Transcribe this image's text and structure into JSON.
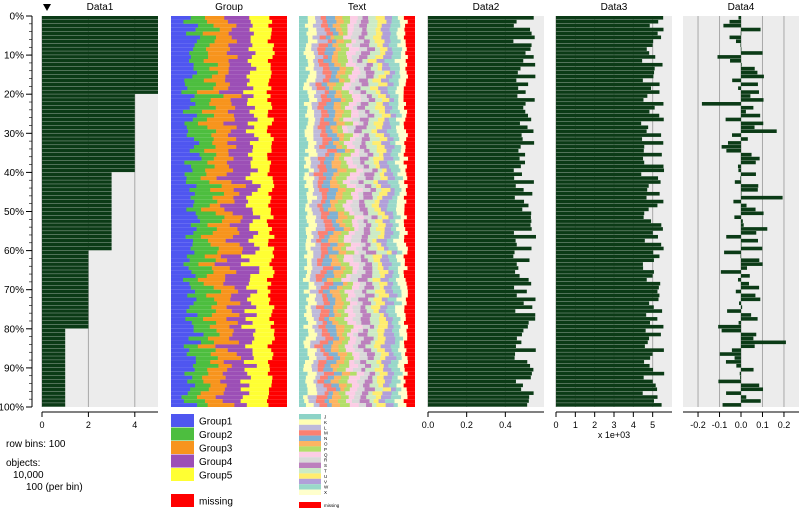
{
  "chart_data": {
    "type": "table",
    "title": "",
    "row_bins": {
      "label": "row bins:",
      "value": "100"
    },
    "objects": {
      "label": "objects:",
      "total": "10,000",
      "per_bin": "100 (per bin)"
    },
    "row_axis": {
      "ticks": [
        "0%",
        "10%",
        "20%",
        "30%",
        "40%",
        "50%",
        "60%",
        "70%",
        "80%",
        "90%",
        "100%"
      ]
    },
    "sort_column": "Data1",
    "sort_order": "descending",
    "colors": {
      "numeric_bar": "#0b3b16",
      "panel_bg": "#ececec",
      "gridline": "#a8a8a8",
      "missing": "#ff0000"
    },
    "columns": [
      {
        "name": "Data1",
        "kind": "numeric",
        "xlim": [
          0,
          5
        ],
        "ticks": [
          "0",
          "2",
          "4"
        ],
        "tick_values": [
          0,
          2,
          4
        ],
        "xlabel": "",
        "steps": [
          {
            "from_pct": 0,
            "to_pct": 20,
            "value": 5
          },
          {
            "from_pct": 20,
            "to_pct": 40,
            "value": 4
          },
          {
            "from_pct": 40,
            "to_pct": 60,
            "value": 3
          },
          {
            "from_pct": 60,
            "to_pct": 80,
            "value": 2
          },
          {
            "from_pct": 80,
            "to_pct": 100,
            "value": 1
          }
        ]
      },
      {
        "name": "Group",
        "kind": "categorical",
        "categories": [
          "Group1",
          "Group2",
          "Group3",
          "Group4",
          "Group5"
        ],
        "colors": [
          "#4f56f0",
          "#4dbe3f",
          "#f7941d",
          "#9c4fb6",
          "#ffff33"
        ],
        "mean_props": [
          0.2,
          0.2,
          0.2,
          0.2,
          0.2
        ],
        "missing_prop": 0.14,
        "missing_label": "missing"
      },
      {
        "name": "Text",
        "kind": "categorical",
        "categories": [
          "J",
          "K",
          "L",
          "M",
          "N",
          "O",
          "P",
          "Q",
          "R",
          "S",
          "T",
          "U",
          "V",
          "W",
          "X"
        ],
        "colors": [
          "#8dd3c7",
          "#ffffb3",
          "#bebada",
          "#fb8072",
          "#80b1d3",
          "#fdb462",
          "#b3de69",
          "#fccde5",
          "#d9d9d9",
          "#bc80bd",
          "#ccebc5",
          "#ffed6f",
          "#b19fd9",
          "#99d8c9",
          "#ffffcc"
        ],
        "missing_prop": 0.08,
        "missing_label": "missing"
      },
      {
        "name": "Data2",
        "kind": "numeric",
        "xlim": [
          0,
          0.6
        ],
        "ticks": [
          "0.0",
          "0.2",
          "0.4"
        ],
        "tick_values": [
          0,
          0.2,
          0.4
        ],
        "xlabel": "",
        "mean_value": 0.5,
        "spread": 0.06
      },
      {
        "name": "Data3",
        "kind": "numeric",
        "xlim": [
          0,
          6
        ],
        "ticks": [
          "0",
          "1",
          "2",
          "3",
          "4",
          "5"
        ],
        "tick_values": [
          0,
          1,
          2,
          3,
          4,
          5
        ],
        "xlabel": "x 1e+03",
        "mean_value": 5.0,
        "spread": 0.6
      },
      {
        "name": "Data4",
        "kind": "numeric",
        "xlim": [
          -0.27,
          0.27
        ],
        "ticks": [
          "-0.2",
          "-0.1",
          "0.0",
          "0.1",
          "0.2"
        ],
        "tick_values": [
          -0.2,
          -0.1,
          0,
          0.1,
          0.2
        ],
        "xlabel": "",
        "mean_value": 0.0,
        "spread": 0.11
      }
    ]
  }
}
